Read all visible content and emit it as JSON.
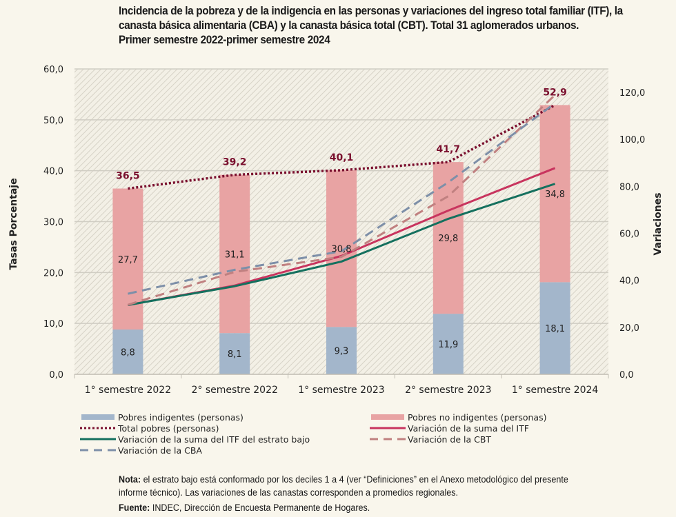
{
  "title_lines": [
    "Incidencia de la pobreza y de la indigencia en las personas y variaciones del ingreso total familiar (ITF), la",
    "canasta básica alimentaria (CBA) y la canasta básica total (CBT). Total 31 aglomerados urbanos.",
    "Primer semestre 2022-primer semestre 2024"
  ],
  "chart_data": {
    "type": "bar",
    "title": "Incidencia de la pobreza y de la indigencia en las personas y variaciones del ingreso total familiar (ITF), la canasta básica alimentaria (CBA) y la canasta básica total (CBT). Total 31 aglomerados urbanos. Primer semestre 2022-primer semestre 2024",
    "categories": [
      "1° semestre 2022",
      "2° semestre 2022",
      "1° semestre 2023",
      "2° semestre 2023",
      "1° semestre 2024"
    ],
    "ylabel": "Tasas\nPorcentaje",
    "y2label": "Variaciones",
    "ylim": [
      0,
      60
    ],
    "y2lim": [
      0,
      130
    ],
    "yticks": [
      "0,0",
      "10,0",
      "20,0",
      "30,0",
      "40,0",
      "50,0",
      "60,0"
    ],
    "y2ticks": [
      "0,0",
      "20,0",
      "40,0",
      "60,0",
      "80,0",
      "100,0",
      "120,0"
    ],
    "y2tick_values": [
      0,
      20,
      40,
      60,
      80,
      100,
      120
    ],
    "grid": true,
    "legend_position": "bottom",
    "series": [
      {
        "name": "Pobres indigentes (personas)",
        "kind": "stacked-bar",
        "axis": "left",
        "color": "#a3b6cb",
        "values": [
          8.8,
          8.1,
          9.3,
          11.9,
          18.1
        ],
        "labels": [
          "8,8",
          "8,1",
          "9,3",
          "11,9",
          "18,1"
        ]
      },
      {
        "name": "Pobres no indigentes (personas)",
        "kind": "stacked-bar",
        "axis": "left",
        "color": "#e8a3a3",
        "values": [
          27.7,
          31.1,
          30.8,
          29.8,
          34.8
        ],
        "labels": [
          "27,7",
          "31,1",
          "30,8",
          "29,8",
          "34,8"
        ]
      },
      {
        "name": "Total pobres (personas)",
        "kind": "dotted-line",
        "axis": "left",
        "color": "#7a0f2e",
        "values": [
          36.5,
          39.2,
          40.1,
          41.7,
          52.9
        ],
        "labels": [
          "36,5",
          "39,2",
          "40,1",
          "41,7",
          "52,9"
        ]
      },
      {
        "name": "Variación de la suma del ITF",
        "kind": "line",
        "axis": "right",
        "color": "#c8345e",
        "values": [
          29.5,
          37.8,
          50.4,
          69.7,
          87.8
        ]
      },
      {
        "name": "Variación de la suma del ITF del estrato bajo",
        "kind": "line",
        "axis": "right",
        "color": "#14705e",
        "values": [
          29.5,
          37.5,
          48.0,
          66.2,
          81.1
        ]
      },
      {
        "name": "Variación de la CBT",
        "kind": "dashed-line",
        "axis": "right",
        "color": "#c08080",
        "values": [
          29.6,
          43.6,
          50.0,
          75.8,
          118.9
        ]
      },
      {
        "name": "Variación de la CBA",
        "kind": "dashed-line",
        "axis": "right",
        "color": "#7d8fa8",
        "values": [
          34.3,
          44.5,
          52.4,
          81.7,
          115.4
        ]
      }
    ]
  },
  "legend": [
    {
      "label": "Pobres indigentes (personas)",
      "swatch": "bar",
      "color": "#a3b6cb"
    },
    {
      "label": "Pobres no indigentes (personas)",
      "swatch": "bar",
      "color": "#e8a3a3"
    },
    {
      "label": "Total pobres (personas)",
      "swatch": "dotted",
      "color": "#7a0f2e"
    },
    {
      "label": "Variación de la suma del ITF",
      "swatch": "solid",
      "color": "#c8345e"
    },
    {
      "label": "Variación de la suma del ITF del estrato bajo",
      "swatch": "solid",
      "color": "#14705e"
    },
    {
      "label": "Variación de la CBT",
      "swatch": "dashed",
      "color": "#c08080"
    },
    {
      "label": "Variación de la CBA",
      "swatch": "dashed",
      "color": "#7d8fa8"
    }
  ],
  "notes": {
    "nota_label": "Nota:",
    "nota_line1": " el estrato bajo está conformado por los deciles 1 a 4 (ver “Definiciones” en el Anexo metodológico del presente",
    "nota_line2": "informe técnico). Las variaciones de las canastas corresponden a promedios regionales.",
    "fuente_label": "Fuente:",
    "fuente_text": " INDEC, Dirección de Encuesta Permanente de Hogares."
  }
}
